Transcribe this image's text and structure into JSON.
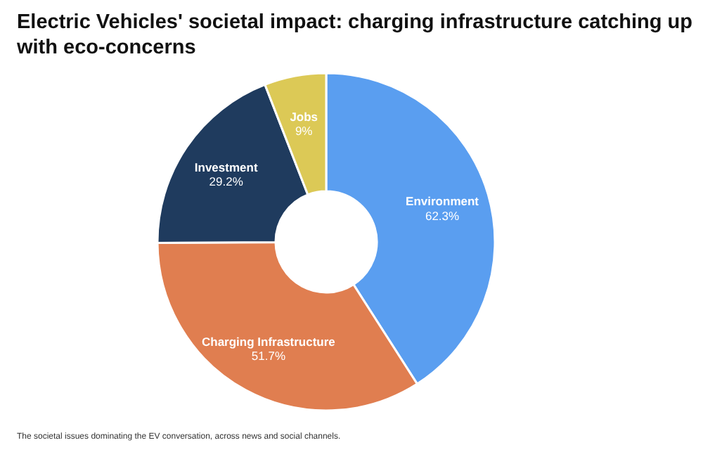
{
  "chart_data": {
    "type": "donut",
    "title": "Electric Vehicles' societal impact: charging infrastructure catching up with eco-concerns",
    "categories": [
      "Environment",
      "Charging Infrastructure",
      "Investment",
      "Jobs"
    ],
    "values": [
      62.3,
      51.7,
      29.2,
      9
    ],
    "colors": [
      "#5a9ef0",
      "#e07e50",
      "#1f3b5e",
      "#dcc956"
    ],
    "value_labels": [
      "62.3%",
      "51.7%",
      "29.2%",
      "9%"
    ],
    "annotations": [
      "The societal issues dominating the EV conversation, across news and social channels."
    ]
  }
}
